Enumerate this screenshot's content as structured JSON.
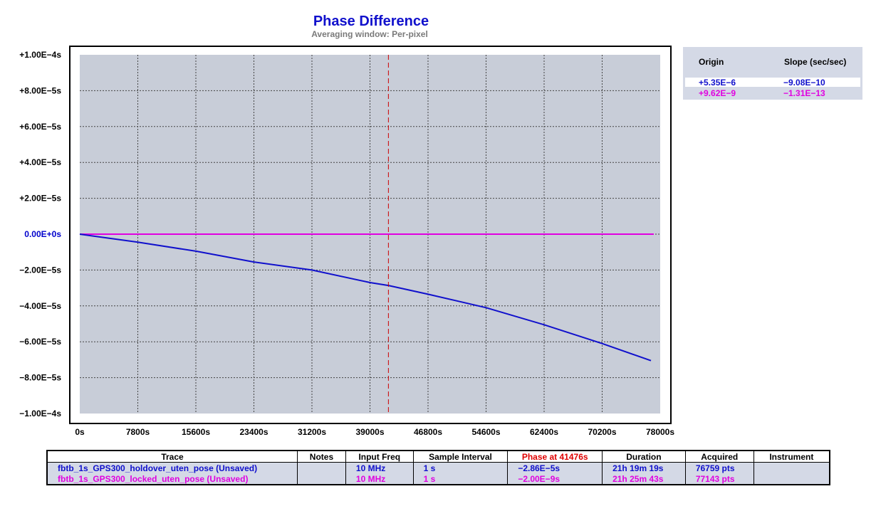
{
  "chart_data": {
    "type": "line",
    "title": "Phase Difference",
    "subtitle": "Averaging window: Per-pixel",
    "xlim": [
      0,
      78000
    ],
    "ylim": [
      -0.0001,
      0.0001
    ],
    "x_ticks": [
      "0s",
      "7800s",
      "15600s",
      "23400s",
      "31200s",
      "39000s",
      "46800s",
      "54600s",
      "62400s",
      "70200s",
      "78000s"
    ],
    "y_ticks": [
      "+1.00E−4s",
      "+8.00E−5s",
      "+6.00E−5s",
      "+4.00E−5s",
      "+2.00E−5s",
      "0.00E+0s",
      "−2.00E−5s",
      "−4.00E−5s",
      "−6.00E−5s",
      "−8.00E−5s",
      "−1.00E−4s"
    ],
    "zero_tick_color": "#0000cc",
    "plot_bg": "#c8cdd8",
    "cursor_x": 41476,
    "cursor_color": "#cc0000",
    "grid": true,
    "series": [
      {
        "name": "fbtb_1s_GPS300_holdover_uten_pose",
        "color": "#1010cc",
        "x": [
          0,
          7800,
          15600,
          23400,
          31200,
          39000,
          41476,
          46800,
          54600,
          62400,
          70200,
          76759
        ],
        "y": [
          0,
          -4.5e-06,
          -9.5e-06,
          -1.55e-05,
          -2e-05,
          -2.7e-05,
          -2.86e-05,
          -3.35e-05,
          -4.1e-05,
          -5.05e-05,
          -6.1e-05,
          -7.05e-05
        ]
      },
      {
        "name": "fbtb_1s_GPS300_locked_uten_pose",
        "color": "#e000e0",
        "x": [
          0,
          77143
        ],
        "y": [
          0,
          0
        ]
      }
    ]
  },
  "regression": {
    "origin_header": "Origin",
    "slope_header": "Slope (sec/sec)",
    "rows": [
      {
        "origin": "+5.35E−6",
        "slope": "−9.08E−10",
        "color": "#1010cc"
      },
      {
        "origin": "+9.62E−9",
        "slope": "−1.31E−13",
        "color": "#e000e0"
      }
    ]
  },
  "trace_table": {
    "headers": [
      "Trace",
      "Notes",
      "Input Freq",
      "Sample Interval",
      "Phase at 41476s",
      "Duration",
      "Acquired",
      "Instrument"
    ],
    "phase_header_color": "#e00000",
    "rows": [
      {
        "trace": "fbtb_1s_GPS300_holdover_uten_pose  (Unsaved)",
        "notes": "",
        "input_freq": "10 MHz",
        "sample_interval": "1 s",
        "phase": "−2.86E−5s",
        "duration": "21h 19m 19s",
        "acquired": "76759 pts",
        "instrument": "",
        "color": "#1010cc"
      },
      {
        "trace": "fbtb_1s_GPS300_locked_uten_pose  (Unsaved)",
        "notes": "",
        "input_freq": "10 MHz",
        "sample_interval": "1 s",
        "phase": "−2.00E−9s",
        "duration": "21h 25m 43s",
        "acquired": "77143 pts",
        "instrument": "",
        "color": "#e000e0"
      }
    ]
  }
}
